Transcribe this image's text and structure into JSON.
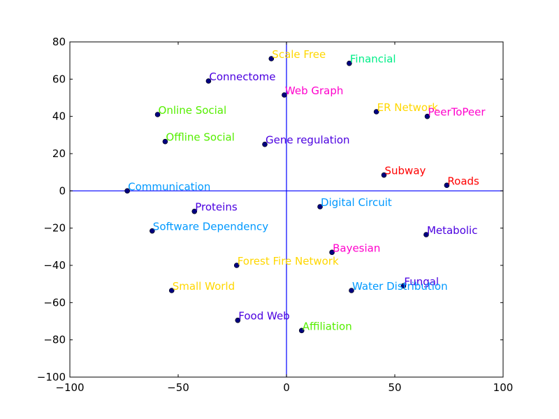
{
  "chart_data": {
    "type": "scatter",
    "title": "",
    "xlabel": "",
    "ylabel": "",
    "xlim": [
      -100,
      100
    ],
    "ylim": [
      -100,
      80
    ],
    "x_ticks": [
      -100,
      -50,
      0,
      50,
      100
    ],
    "y_ticks": [
      -100,
      -80,
      -60,
      -40,
      -20,
      0,
      20,
      40,
      60,
      80
    ],
    "x_tick_labels": [
      "−100",
      "−50",
      "0",
      "50",
      "100"
    ],
    "y_tick_labels": [
      "−100",
      "−80",
      "−60",
      "−40",
      "−20",
      "0",
      "20",
      "40",
      "60",
      "80"
    ],
    "grid": false,
    "reference_lines": {
      "x": 0,
      "y": 0,
      "color": "#0000ff"
    },
    "marker_color": "#00007f",
    "points": [
      {
        "label": "Scale Free",
        "x": -7,
        "y": 71,
        "color": "#ffd700"
      },
      {
        "label": "Financial",
        "x": 29,
        "y": 68.5,
        "color": "#00ee88"
      },
      {
        "label": "Connectome",
        "x": -36,
        "y": 59,
        "color": "#4b00e0"
      },
      {
        "label": "Web Graph",
        "x": -1,
        "y": 51.5,
        "color": "#ff00cc"
      },
      {
        "label": "ER Network",
        "x": 41.5,
        "y": 42.5,
        "color": "#ffd700"
      },
      {
        "label": "PeerToPeer",
        "x": 65,
        "y": 40,
        "color": "#ff00cc"
      },
      {
        "label": "Online Social",
        "x": -59.5,
        "y": 41,
        "color": "#55ee00"
      },
      {
        "label": "Offline Social",
        "x": -56,
        "y": 26.5,
        "color": "#55ee00"
      },
      {
        "label": "Gene regulation",
        "x": -10,
        "y": 25,
        "color": "#4b00e0"
      },
      {
        "label": "Subway",
        "x": 45,
        "y": 8.5,
        "color": "#ff0000"
      },
      {
        "label": "Roads",
        "x": 74,
        "y": 3,
        "color": "#ff0000"
      },
      {
        "label": "Communication",
        "x": -73.5,
        "y": 0,
        "color": "#0099ff"
      },
      {
        "label": "Proteins",
        "x": -42.5,
        "y": -11,
        "color": "#4b00e0"
      },
      {
        "label": "Digital Circuit",
        "x": 15.5,
        "y": -8.5,
        "color": "#0099ff"
      },
      {
        "label": "Software Dependency",
        "x": -62,
        "y": -21.5,
        "color": "#0099ff"
      },
      {
        "label": "Metabolic",
        "x": 64.5,
        "y": -23.5,
        "color": "#4b00e0"
      },
      {
        "label": "Bayesian",
        "x": 21,
        "y": -33,
        "color": "#ff00cc"
      },
      {
        "label": "Forest Fire Network",
        "x": -23,
        "y": -40,
        "color": "#ffd700"
      },
      {
        "label": "Small World",
        "x": -53,
        "y": -53.5,
        "color": "#ffd700"
      },
      {
        "label": "Fungal",
        "x": 54,
        "y": -51,
        "color": "#4b00e0"
      },
      {
        "label": "Water Distribution",
        "x": 30,
        "y": -53.5,
        "color": "#0099ff"
      },
      {
        "label": "Food Web",
        "x": -22.5,
        "y": -69.5,
        "color": "#4b00e0"
      },
      {
        "label": "Affiliation",
        "x": 7,
        "y": -75,
        "color": "#55ee00"
      }
    ]
  }
}
